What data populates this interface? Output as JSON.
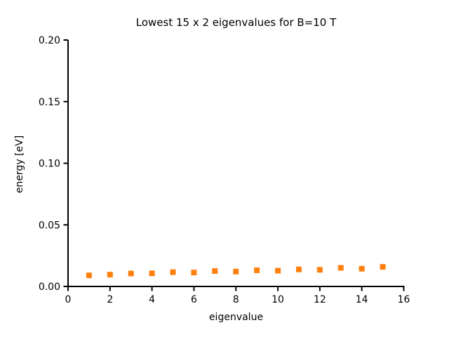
{
  "chart_data": {
    "type": "scatter",
    "title": "Lowest 15 x 2 eigenvalues for B=10 T",
    "xlabel": "eigenvalue",
    "ylabel": "energy [eV]",
    "xlim": [
      0,
      16
    ],
    "ylim": [
      0,
      0.2
    ],
    "xticks": [
      0,
      2,
      4,
      6,
      8,
      10,
      12,
      14,
      16
    ],
    "xtick_labels": [
      "0",
      "2",
      "4",
      "6",
      "8",
      "10",
      "12",
      "14",
      "16"
    ],
    "yticks": [
      0,
      0.05,
      0.1,
      0.15,
      0.2
    ],
    "ytick_labels": [
      "0.00",
      "0.05",
      "0.10",
      "0.15",
      "0.20"
    ],
    "grid": false,
    "legend_position": "none",
    "spines": [
      "left",
      "bottom"
    ],
    "tick_direction": "out",
    "marker": "square",
    "marker_color": "#ff7f0e",
    "axis_color": "#000000",
    "background_color": "#ffffff",
    "series": [
      {
        "name": "eigenvalues",
        "x": [
          1,
          2,
          3,
          4,
          5,
          6,
          7,
          8,
          9,
          10,
          11,
          12,
          13,
          14,
          15
        ],
        "y": [
          0.009,
          0.0096,
          0.0105,
          0.0106,
          0.0116,
          0.0113,
          0.0125,
          0.0121,
          0.0131,
          0.0128,
          0.0138,
          0.0135,
          0.0151,
          0.0144,
          0.0159
        ]
      }
    ]
  }
}
